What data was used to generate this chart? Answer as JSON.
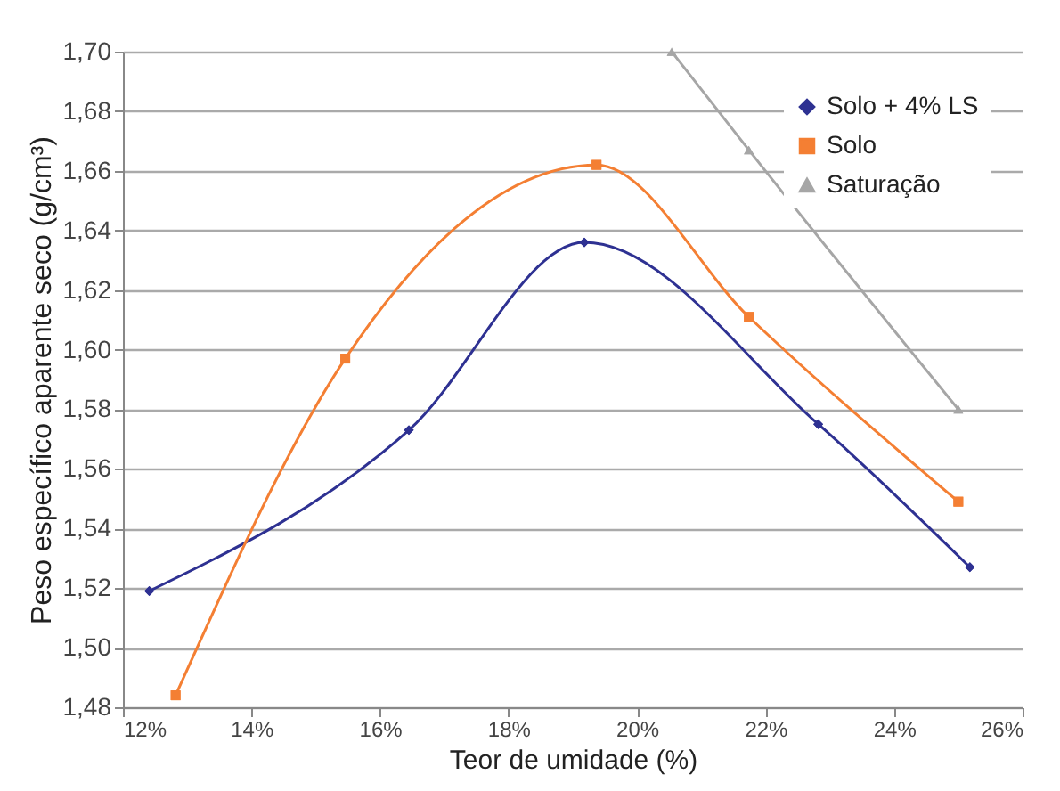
{
  "chart_data": {
    "type": "line",
    "xlabel": "Teor de umidade (%)",
    "ylabel": "Peso específico aparente seco (g/cm³)",
    "xlim": [
      12,
      26
    ],
    "xticks": [
      {
        "value": 12,
        "label": "12%"
      },
      {
        "value": 14,
        "label": "14%"
      },
      {
        "value": 16,
        "label": "16%"
      },
      {
        "value": 18,
        "label": "18%"
      },
      {
        "value": 20,
        "label": "20%"
      },
      {
        "value": 22,
        "label": "22%"
      },
      {
        "value": 24,
        "label": "24%"
      },
      {
        "value": 26,
        "label": "26%"
      }
    ],
    "ylim": [
      1.48,
      1.7
    ],
    "yticks": [
      {
        "value": 1.48,
        "label": "1,48"
      },
      {
        "value": 1.5,
        "label": "1,50"
      },
      {
        "value": 1.52,
        "label": "1,52"
      },
      {
        "value": 1.54,
        "label": "1,54"
      },
      {
        "value": 1.56,
        "label": "1,56"
      },
      {
        "value": 1.58,
        "label": "1,58"
      },
      {
        "value": 1.6,
        "label": "1,60"
      },
      {
        "value": 1.62,
        "label": "1,62"
      },
      {
        "value": 1.64,
        "label": "1,64"
      },
      {
        "value": 1.66,
        "label": "1,66"
      },
      {
        "value": 1.68,
        "label": "1,68"
      },
      {
        "value": 1.7,
        "label": "1,70"
      }
    ],
    "grid": "y",
    "legend": "top right",
    "series": [
      {
        "name": "Solo + 4% LS",
        "color": "#2e3192",
        "marker": "diamond",
        "x": [
          12.41,
          16.45,
          19.18,
          22.82,
          25.18
        ],
        "values": [
          1.519,
          1.573,
          1.636,
          1.575,
          1.527
        ]
      },
      {
        "name": "Solo",
        "color": "#f47f33",
        "marker": "square",
        "x": [
          12.82,
          15.46,
          19.37,
          21.74,
          25.0
        ],
        "values": [
          1.484,
          1.597,
          1.662,
          1.611,
          1.549
        ]
      },
      {
        "name": "Saturação",
        "color": "#a6a6a6",
        "marker": "triangle",
        "x": [
          20.54,
          21.74,
          25.0
        ],
        "values": [
          1.7,
          1.667,
          1.58
        ]
      }
    ]
  }
}
